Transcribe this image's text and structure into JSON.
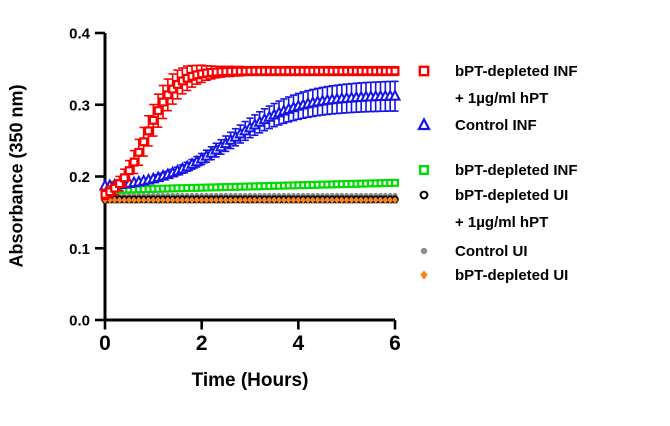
{
  "chart_data": {
    "type": "scatter",
    "title": "",
    "xlabel": "Time (Hours)",
    "ylabel": "Absorbance (350 nm)",
    "xlim": [
      0,
      6
    ],
    "ylim": [
      0.0,
      0.4
    ],
    "xticks": [
      0,
      2,
      4,
      6
    ],
    "yticks": [
      "0.0",
      "0.1",
      "0.2",
      "0.3",
      "0.4"
    ],
    "grid": false,
    "legend_position": "right",
    "x_unit": "hours",
    "x": [
      0,
      0.1,
      0.2,
      0.3,
      0.4,
      0.5,
      0.6,
      0.7,
      0.8,
      0.9,
      1,
      1.1,
      1.2,
      1.3,
      1.4,
      1.5,
      1.6,
      1.7,
      1.8,
      1.9,
      2,
      2.1,
      2.2,
      2.3,
      2.4,
      2.5,
      2.6,
      2.7,
      2.8,
      2.9,
      3,
      3.1,
      3.2,
      3.3,
      3.4,
      3.5,
      3.6,
      3.7,
      3.8,
      3.9,
      4,
      4.1,
      4.2,
      4.3,
      4.4,
      4.5,
      4.6,
      4.7,
      4.8,
      4.9,
      5,
      5.1,
      5.2,
      5.3,
      5.4,
      5.5,
      5.6,
      5.7,
      5.8,
      5.9,
      6
    ],
    "draw_order": [
      4,
      2,
      3,
      5,
      1,
      0
    ],
    "series": [
      {
        "id": "bpt-depleted-inf-plus-hpt",
        "name": "bPT-depleted INF + 1µg/ml hPT",
        "marker": "open-square",
        "color": "#F80000",
        "values": [
          0.1751,
          0.1788,
          0.1837,
          0.1901,
          0.1982,
          0.2082,
          0.2201,
          0.2337,
          0.2484,
          0.2636,
          0.2783,
          0.2918,
          0.3038,
          0.3138,
          0.3219,
          0.3283,
          0.3332,
          0.3369,
          0.3396,
          0.3417,
          0.3431,
          0.3442,
          0.345,
          0.3456,
          0.346,
          0.3463,
          0.3465,
          0.3467,
          0.3468,
          0.3469,
          0.347,
          0.347,
          0.347,
          0.347,
          0.347,
          0.347,
          0.347,
          0.347,
          0.347,
          0.347,
          0.347,
          0.347,
          0.347,
          0.347,
          0.347,
          0.347,
          0.347,
          0.347,
          0.347,
          0.347,
          0.347,
          0.347,
          0.347,
          0.347,
          0.347,
          0.347,
          0.347,
          0.347,
          0.347,
          0.347,
          0.347
        ],
        "errors": [
          0.007,
          0.008,
          0.009,
          0.01,
          0.012,
          0.014,
          0.016,
          0.018,
          0.02,
          0.021,
          0.022,
          0.023,
          0.023,
          0.022,
          0.021,
          0.02,
          0.018,
          0.017,
          0.015,
          0.013,
          0.012,
          0.01,
          0.009,
          0.008,
          0.0075,
          0.007,
          0.007,
          0.0065,
          0.0065,
          0.006,
          0.006,
          0.006,
          0.006,
          0.006,
          0.006,
          0.006,
          0.006,
          0.006,
          0.006,
          0.006,
          0.006,
          0.006,
          0.006,
          0.006,
          0.006,
          0.006,
          0.006,
          0.006,
          0.006,
          0.006,
          0.006,
          0.006,
          0.006,
          0.006,
          0.006,
          0.006,
          0.006,
          0.006,
          0.006,
          0.006,
          0.006
        ]
      },
      {
        "id": "control-inf",
        "name": "Control INF",
        "marker": "open-triangle",
        "color": "#1414E6",
        "values": [
          0.1867,
          0.1872,
          0.1878,
          0.1885,
          0.1892,
          0.1901,
          0.1911,
          0.1922,
          0.1935,
          0.1949,
          0.1965,
          0.1983,
          0.2003,
          0.2025,
          0.2049,
          0.2075,
          0.2104,
          0.2135,
          0.2169,
          0.2205,
          0.2243,
          0.2283,
          0.2325,
          0.2368,
          0.2412,
          0.2457,
          0.2503,
          0.2547,
          0.2592,
          0.2635,
          0.2677,
          0.2717,
          0.2755,
          0.2791,
          0.2825,
          0.2856,
          0.2885,
          0.2911,
          0.2935,
          0.2957,
          0.2977,
          0.2995,
          0.3011,
          0.3025,
          0.3038,
          0.3049,
          0.3059,
          0.3068,
          0.3075,
          0.3082,
          0.3088,
          0.3093,
          0.3098,
          0.3102,
          0.3106,
          0.3109,
          0.3111,
          0.3114,
          0.3116,
          0.3118,
          0.3119
        ],
        "errors": [
          0.002,
          0.002,
          0.002,
          0.002,
          0.002,
          0.0025,
          0.003,
          0.003,
          0.003,
          0.0033,
          0.0036,
          0.004,
          0.0043,
          0.0046,
          0.005,
          0.0054,
          0.0058,
          0.0062,
          0.0067,
          0.0072,
          0.0077,
          0.0083,
          0.0089,
          0.0095,
          0.0101,
          0.0107,
          0.0113,
          0.0119,
          0.0125,
          0.0131,
          0.0136,
          0.0142,
          0.0147,
          0.0152,
          0.0157,
          0.0161,
          0.0166,
          0.017,
          0.0173,
          0.0177,
          0.018,
          0.0183,
          0.0186,
          0.0188,
          0.019,
          0.0192,
          0.0194,
          0.0196,
          0.0197,
          0.0199,
          0.02,
          0.0201,
          0.0202,
          0.0203,
          0.0204,
          0.0204,
          0.0205,
          0.0205,
          0.0206,
          0.0206,
          0.0207
        ]
      },
      {
        "id": "bpt-depleted-inf",
        "name": "bPT-depleted INF",
        "marker": "open-square",
        "color": "#00DC00",
        "values": [
          0.181,
          0.1812,
          0.1813,
          0.1815,
          0.1817,
          0.1819,
          0.182,
          0.1822,
          0.1824,
          0.1825,
          0.1827,
          0.1829,
          0.183,
          0.1832,
          0.1834,
          0.1836,
          0.1837,
          0.1839,
          0.1841,
          0.1842,
          0.1844,
          0.1846,
          0.1847,
          0.1849,
          0.1851,
          0.1853,
          0.1854,
          0.1856,
          0.1858,
          0.1859,
          0.1861,
          0.1863,
          0.1864,
          0.1866,
          0.1868,
          0.187,
          0.1871,
          0.1873,
          0.1875,
          0.1876,
          0.1878,
          0.188,
          0.1881,
          0.1883,
          0.1885,
          0.1887,
          0.1888,
          0.189,
          0.1892,
          0.1893,
          0.1895,
          0.1897,
          0.1898,
          0.19,
          0.1902,
          0.1904,
          0.1905,
          0.1907,
          0.1909,
          0.191,
          0.1912
        ],
        "errors": null
      },
      {
        "id": "bpt-depleted-ui-plus-hpt",
        "name": "bPT-depleted UI + 1µg/ml hPT",
        "marker": "open-circle",
        "color": "#000000",
        "values_constant": 0.168,
        "errors_constant": 0.0045
      },
      {
        "id": "control-ui",
        "name": "Control UI",
        "marker": "filled-circle",
        "color": "#8C8C8C",
        "values_constant": 0.174,
        "errors": null
      },
      {
        "id": "bpt-depleted-ui",
        "name": "bPT-depleted UI",
        "marker": "filled-diamond",
        "color": "#FA8019",
        "values_constant": 0.167,
        "errors": null
      }
    ],
    "legend": [
      {
        "lines": [
          "bPT-depleted INF",
          "+ 1µg/ml hPT"
        ],
        "marker": "open-square",
        "color": "#F80000"
      },
      {
        "lines": [
          "Control INF"
        ],
        "marker": "open-triangle",
        "color": "#1414E6"
      },
      {
        "lines": [
          "bPT-depleted INF"
        ],
        "marker": "open-square",
        "color": "#00DC00"
      },
      {
        "lines": [
          "bPT-depleted UI",
          "+ 1µg/ml hPT"
        ],
        "marker": "open-circle",
        "color": "#000000"
      },
      {
        "lines": [
          "Control UI"
        ],
        "marker": "filled-circle",
        "color": "#8C8C8C"
      },
      {
        "lines": [
          "bPT-depleted UI"
        ],
        "marker": "filled-diamond",
        "color": "#FA8019"
      }
    ]
  }
}
